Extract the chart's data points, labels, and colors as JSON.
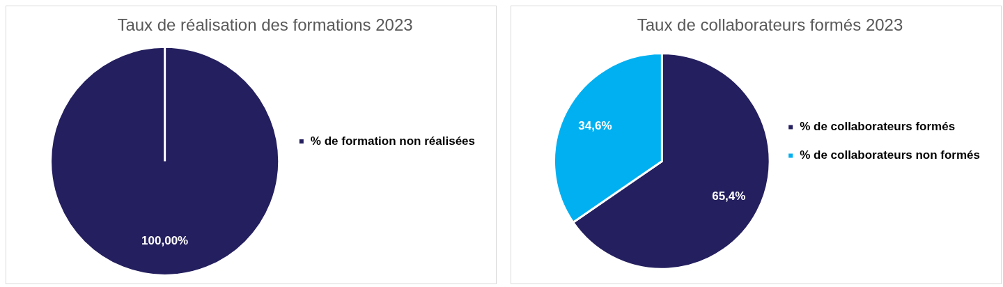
{
  "chart_data": [
    {
      "type": "pie",
      "title": "Taux de réalisation des formations 2023",
      "categories": [
        "% de formation non réalisées"
      ],
      "values": [
        100
      ],
      "colors": [
        "#241f5e"
      ],
      "value_labels": [
        "100,00%"
      ],
      "legend": "right"
    },
    {
      "type": "pie",
      "title": "Taux de collaborateurs formés 2023",
      "categories": [
        "% de collaborateurs formés",
        "% de collaborateurs non formés"
      ],
      "values": [
        65.4,
        34.6
      ],
      "colors": [
        "#241f5e",
        "#00b0f0"
      ],
      "value_labels": [
        "65,4%",
        "34,6%"
      ],
      "legend": "right"
    }
  ]
}
